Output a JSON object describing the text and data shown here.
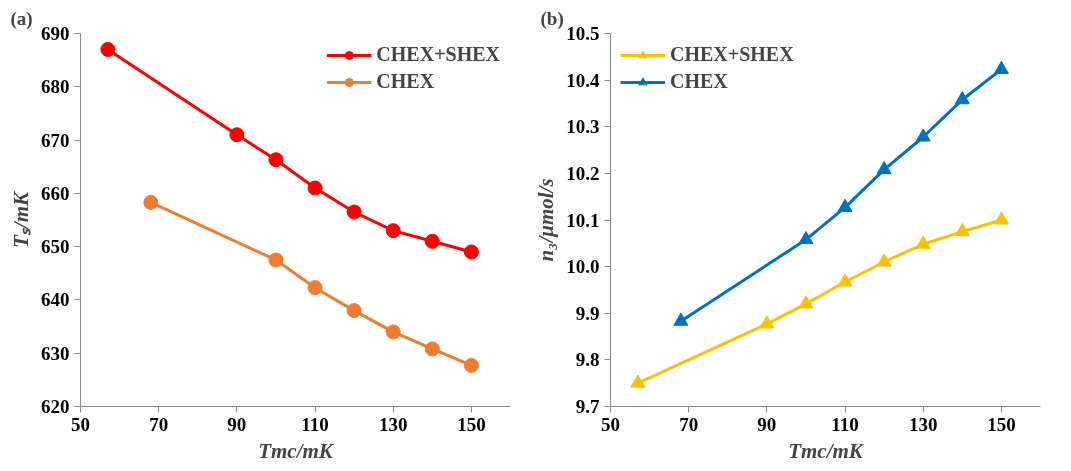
{
  "chart_data": [
    {
      "type": "line",
      "title": "(a)",
      "xlabel": "Tmc/mK",
      "ylabel": "Tₛ/mK",
      "xlim": [
        50,
        160
      ],
      "xticks": [
        50,
        70,
        90,
        110,
        130,
        150
      ],
      "ylim": [
        620,
        690
      ],
      "yticks": [
        620,
        630,
        640,
        650,
        660,
        670,
        680,
        690
      ],
      "grid": false,
      "legend": "top right",
      "line_style": "solid",
      "series": [
        {
          "name": "CHEX+SHEX",
          "color": "#ff0000",
          "marker": "circle",
          "x": [
            57,
            90,
            100,
            110,
            120,
            130,
            140,
            150
          ],
          "values": [
            687,
            671,
            666.3,
            661,
            656.5,
            653,
            651,
            649
          ]
        },
        {
          "name": "CHEX",
          "color": "#ed7d31",
          "marker": "circle",
          "x": [
            68,
            100,
            110,
            120,
            130,
            140,
            150
          ],
          "values": [
            658.3,
            647.5,
            642.3,
            638,
            634,
            630.8,
            627.7
          ]
        }
      ]
    },
    {
      "type": "line",
      "title": "(b)",
      "xlabel": "Tmc/mK",
      "ylabel": "n₃/μmol/s",
      "xlim": [
        50,
        160
      ],
      "xticks": [
        50,
        70,
        90,
        110,
        130,
        150
      ],
      "ylim": [
        9.7,
        10.5
      ],
      "yticks": [
        {
          "value": 9.7,
          "label": "9.7"
        },
        {
          "value": 9.8,
          "label": "9.8"
        },
        {
          "value": 9.9,
          "label": "9.9"
        },
        {
          "value": 10.0,
          "label": "10.0"
        },
        {
          "value": 10.1,
          "label": "10.1"
        },
        {
          "value": 10.2,
          "label": "10.2"
        },
        {
          "value": 10.3,
          "label": "10.3"
        },
        {
          "value": 10.4,
          "label": "10.4"
        },
        {
          "value": 10.5,
          "label": "10.5"
        }
      ],
      "grid": false,
      "legend": "top left",
      "line_style": "solid",
      "series": [
        {
          "name": "CHEX+SHEX",
          "color": "#ffc000",
          "marker": "triangle",
          "x": [
            57,
            90,
            100,
            110,
            120,
            130,
            140,
            150
          ],
          "values": [
            9.75,
            9.877,
            9.92,
            9.967,
            10.01,
            10.048,
            10.075,
            10.1
          ]
        },
        {
          "name": "CHEX",
          "color": "#0070c0",
          "marker": "triangle",
          "x": [
            68,
            100,
            110,
            120,
            130,
            140,
            150
          ],
          "values": [
            9.883,
            10.058,
            10.127,
            10.208,
            10.278,
            10.358,
            10.423
          ]
        }
      ]
    }
  ]
}
